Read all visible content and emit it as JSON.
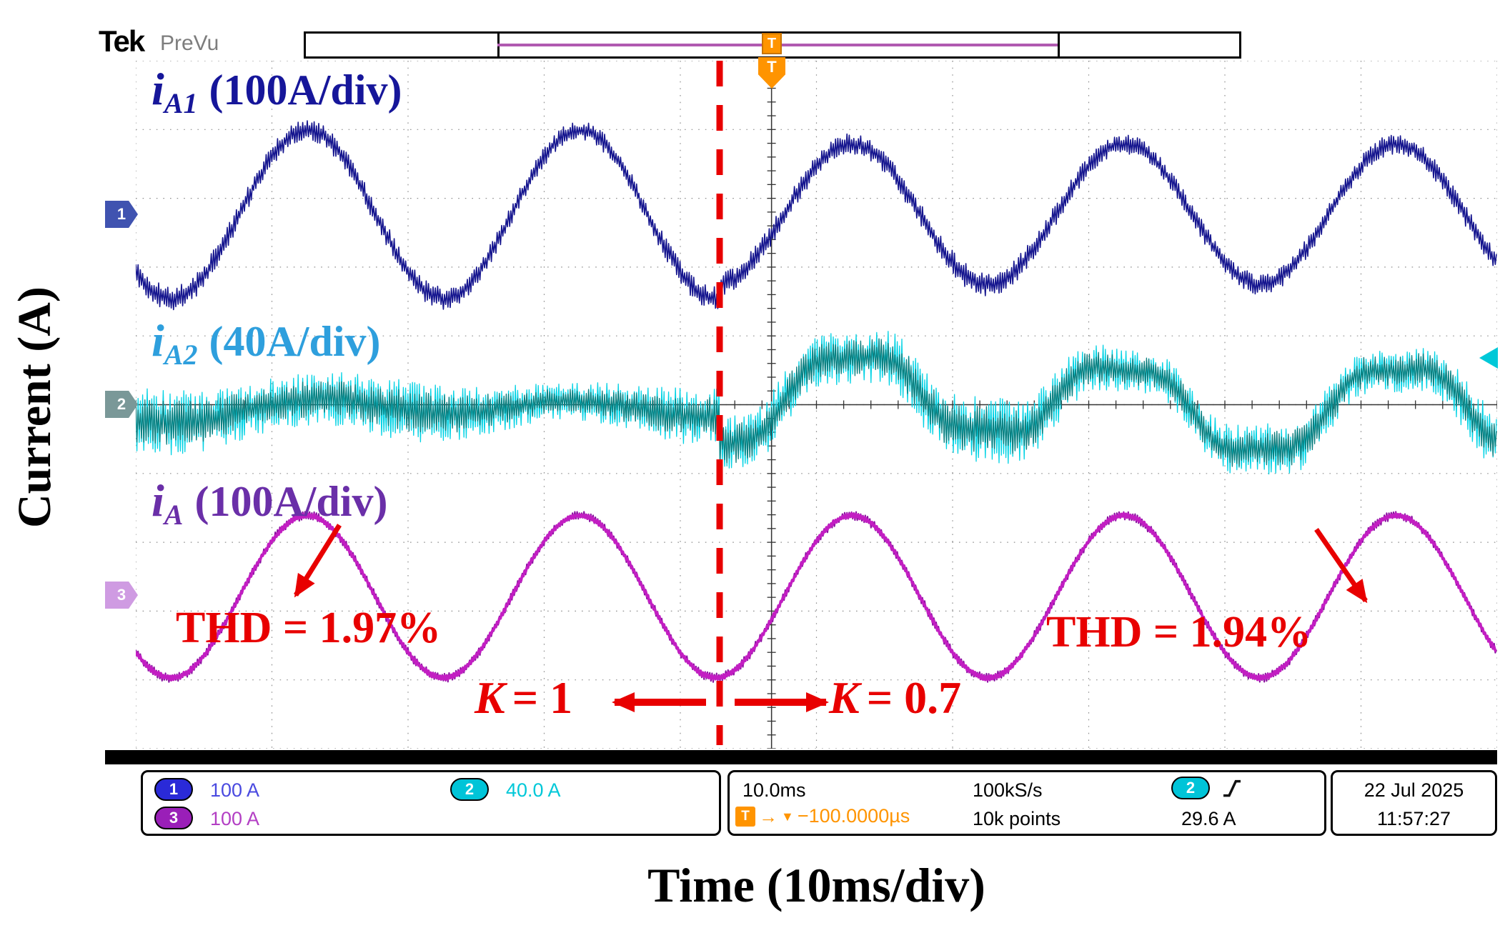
{
  "header": {
    "brand": "Tek",
    "status": "PreVu"
  },
  "icons": {
    "trigger_marker": "T",
    "trigger_arrow": "→",
    "trigger_level_down": "▼"
  },
  "axes": {
    "y_label": "Current (A)",
    "x_label": "Time (10ms/div)"
  },
  "wave_labels": {
    "ch1": {
      "var": "i",
      "sub": "A1",
      "scale": "(100A/div)"
    },
    "ch2": {
      "var": "i",
      "sub": "A2",
      "scale": "(40A/div)"
    },
    "ch3": {
      "var": "i",
      "sub": "A",
      "scale": "(100A/div)"
    }
  },
  "annotations": {
    "thd_left": "THD = 1.97%",
    "thd_right": "THD = 1.94%",
    "k_left": {
      "var": "K",
      "eq": "= 1"
    },
    "k_right": {
      "var": "K",
      "eq": "= 0.7"
    }
  },
  "channel_flags": {
    "ch1": "1",
    "ch2": "2",
    "ch3": "3"
  },
  "readout": {
    "ch1": {
      "badge": "1",
      "scale": "100 A"
    },
    "ch2": {
      "badge": "2",
      "scale": "40.0 A"
    },
    "ch3": {
      "badge": "3",
      "scale": "100 A"
    },
    "timebase": "10.0ms",
    "sample_rate": "100kS/s",
    "record_length": "10k points",
    "trigger_delay": "−100.0000µs",
    "trigger_source_badge": "2",
    "trigger_level": "29.6 A",
    "date": "22 Jul 2025",
    "time": "11:57:27"
  },
  "colors": {
    "ch1": "#16168f",
    "ch2": "#00c8d8",
    "ch2dark": "#0d7d7d",
    "ch3": "#b517b5",
    "label-ch1": "#16169a",
    "label-ch2": "#2e9fdd",
    "label-ch3": "#6a2fa8",
    "red": "#e80000",
    "orange": "#ff9400",
    "acqline": "#b05ab0",
    "badge1": "#2a2ad8",
    "badge2": "#00c4d8",
    "badge3": "#9a1fb8",
    "flag1": "#4053b0",
    "flag2": "#7a9898",
    "flag3": "#cf9be2",
    "readout-ch1": "#4a4ae0",
    "readout-ch2": "#00c8d8",
    "readout-ch3": "#b33fc4"
  },
  "chart_data": {
    "type": "line",
    "instrument": "oscilloscope",
    "x_axis": {
      "label": "Time (10ms/div)",
      "ms_per_div": 10,
      "divisions": 10
    },
    "y_axis": {
      "label": "Current (A)",
      "divisions": 10
    },
    "fundamental_period_div": 2,
    "transition": {
      "boundary_div": 4.29,
      "k_before": 1,
      "k_after": 0.7,
      "before_label": "K = 1",
      "after_label": "K = 0.7"
    },
    "trigger": {
      "position_div": 4.67,
      "source": "CH2",
      "slope": "rising",
      "level": "29.6 A",
      "delay": "−100.0000µs"
    },
    "thd_percent": {
      "before": 1.97,
      "after": 1.94
    },
    "series": [
      {
        "name": "iA1",
        "vertical_scale": "100 A/div",
        "center_div": 2.23,
        "period_div": 2,
        "crest_div": 1.26,
        "amp_div_before": 1.22,
        "amp_div_after": 1.02,
        "noise_mod": 0.25,
        "layers": [
          {
            "color": "#16168f",
            "noise_div": 0.18,
            "stroke": 1.6
          }
        ]
      },
      {
        "name": "iA2",
        "vertical_scale": "40 A/div",
        "center_div": 5.0,
        "period_div": 2,
        "crest_div": 1.26,
        "amp_div_before": 0.13,
        "amp_div_after": 0.62,
        "harm3_div_after": 0.1,
        "wander_div": 0.2,
        "noise_mod": 0.45,
        "layers": [
          {
            "color": "#00d2e4",
            "noise_div": 0.5,
            "stroke": 1.3
          },
          {
            "color": "#0d7d7d",
            "noise_div": 0.34,
            "stroke": 1.3
          }
        ]
      },
      {
        "name": "iA",
        "vertical_scale": "100 A/div",
        "center_div": 7.79,
        "period_div": 2,
        "crest_div": 1.26,
        "amp_div_before": 1.18,
        "amp_div_after": 1.18,
        "noise_mod": 0.1,
        "layers": [
          {
            "color": "#8a11a0",
            "noise_div": 0.07,
            "stroke": 2
          },
          {
            "color": "#c21ec2",
            "noise_div": 0.035,
            "stroke": 3.6
          }
        ]
      }
    ]
  }
}
